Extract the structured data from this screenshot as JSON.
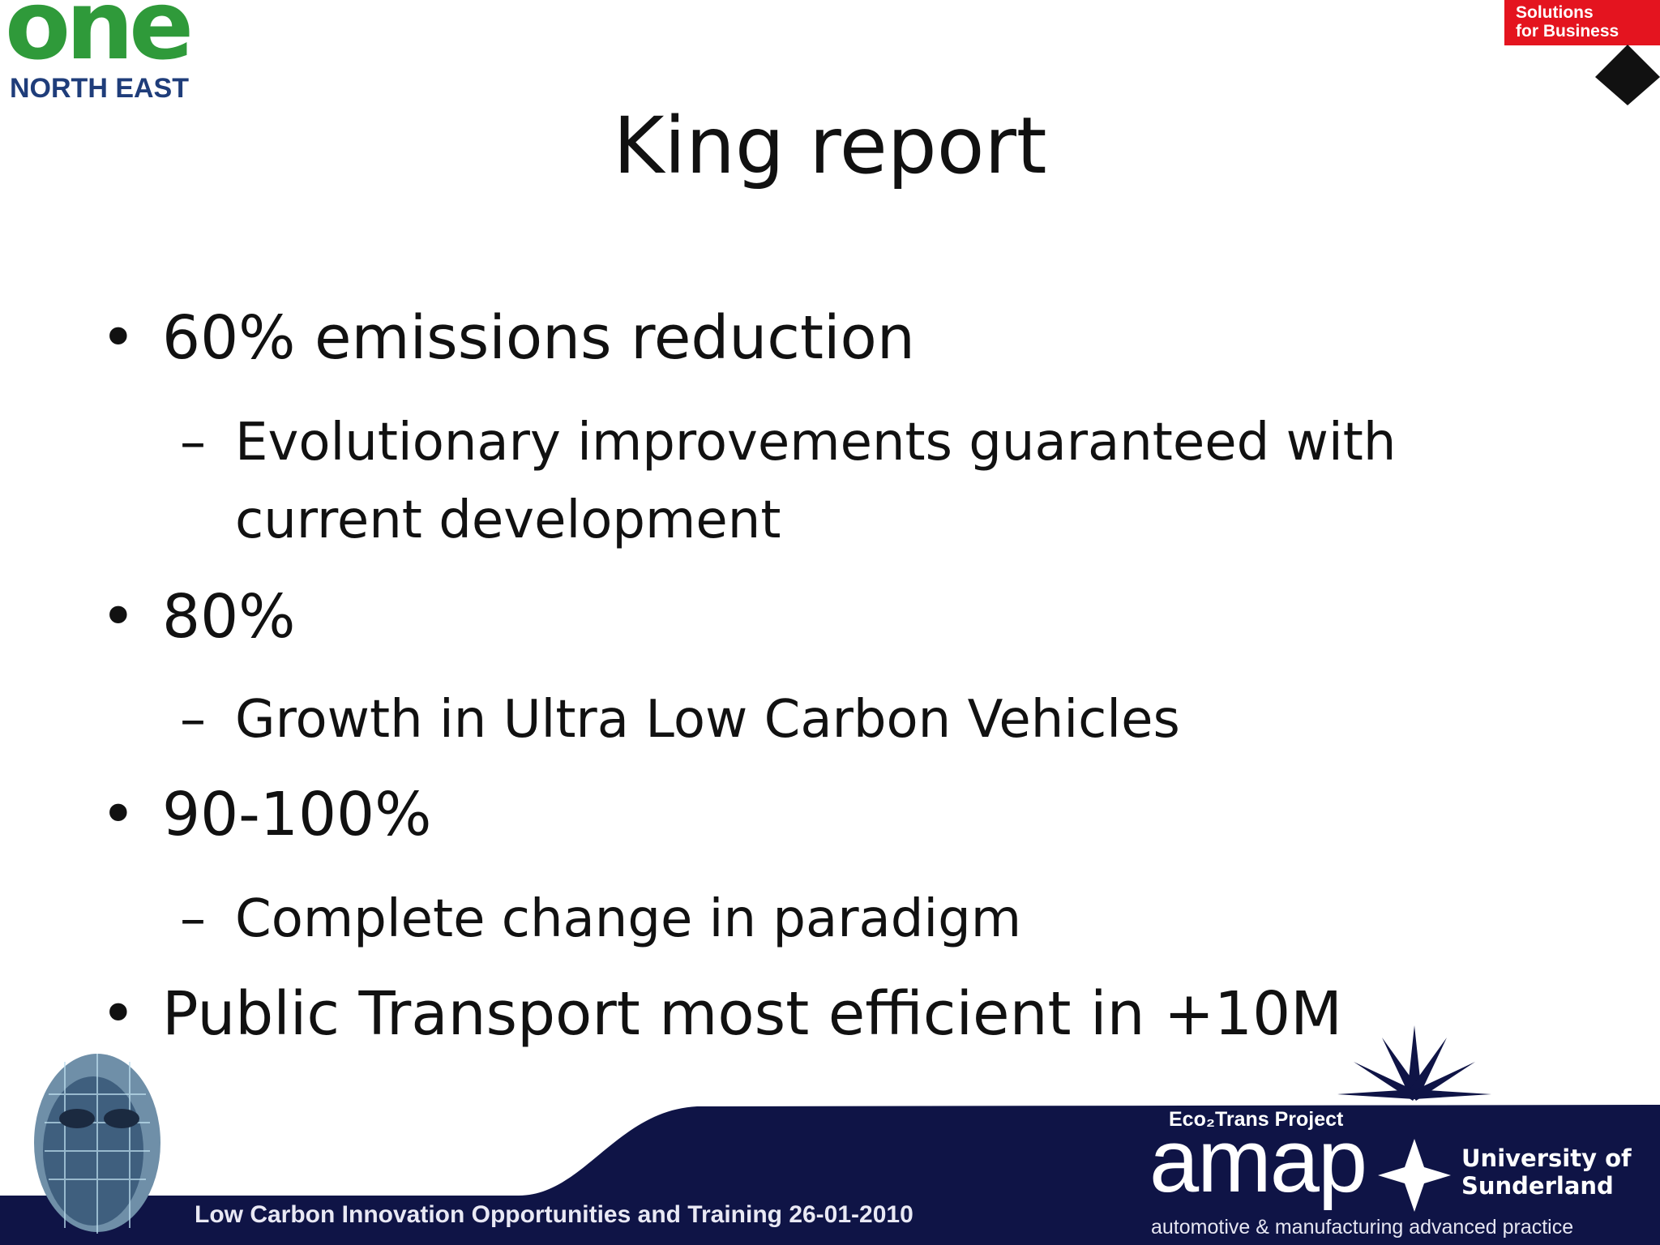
{
  "header": {
    "logo_left": {
      "word": "one",
      "sub": "NORTH EAST"
    },
    "logo_right": {
      "text": "Solutions\nfor Business"
    }
  },
  "slide": {
    "title": "King report",
    "items": [
      {
        "text": "60% emissions reduction",
        "sub": [
          "Evolutionary improvements guaranteed with current development"
        ]
      },
      {
        "text": "80%",
        "sub": [
          "Growth in Ultra Low Carbon Vehicles"
        ]
      },
      {
        "text": "90-100%",
        "sub": [
          "Complete change in paradigm"
        ]
      },
      {
        "text": "Public Transport most efficient in +10M",
        "sub": []
      }
    ]
  },
  "footer": {
    "event": "Low Carbon Innovation Opportunities and Training 26-01-2010",
    "project": "Eco₂Trans Project",
    "brand": "amap",
    "university": "University of\nSunderland",
    "tagline": "automotive & manufacturing advanced practice"
  },
  "colors": {
    "footer_navy": "#0f1446",
    "one_green": "#2f9a3a",
    "one_blue": "#1f3d7a",
    "badge_red": "#e4141f"
  }
}
